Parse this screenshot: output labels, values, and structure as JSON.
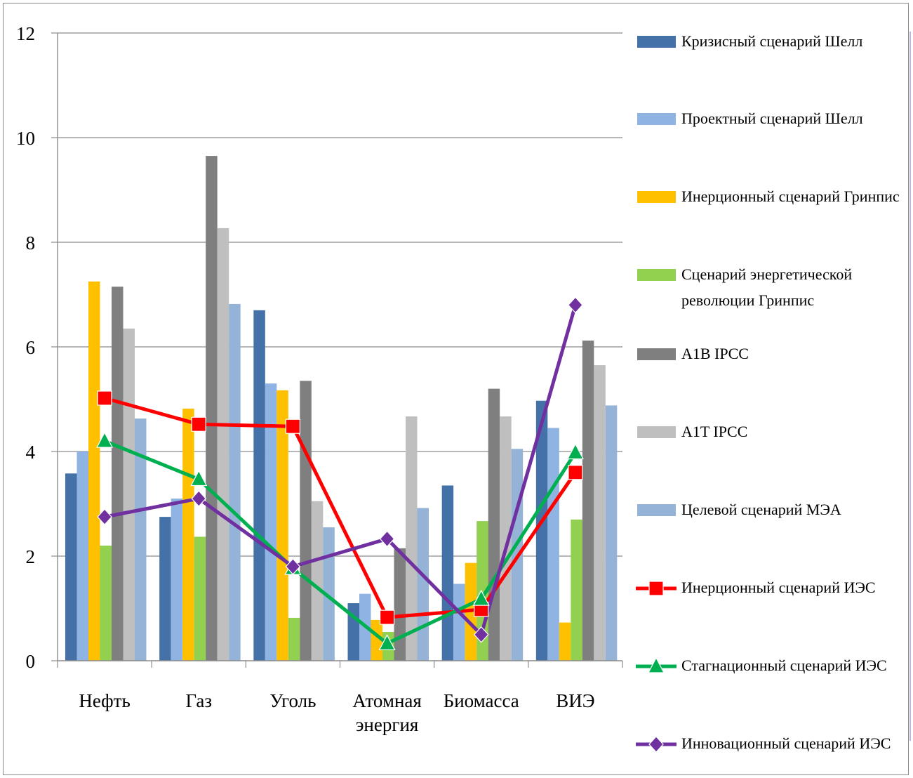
{
  "chart_data": {
    "type": "bar",
    "categories": [
      "Нефть",
      "Газ",
      "Уголь",
      "Атомная энергия",
      "Биомасса",
      "ВИЭ"
    ],
    "category_labels": [
      [
        "Нефть"
      ],
      [
        "Газ"
      ],
      [
        "Уголь"
      ],
      [
        "Атомная",
        "энергия"
      ],
      [
        "Биомасса"
      ],
      [
        "ВИЭ"
      ]
    ],
    "ylim": [
      0,
      12
    ],
    "yticks": [
      "0",
      "2",
      "4",
      "6",
      "8",
      "10",
      "12"
    ],
    "grid": true,
    "legend_position": "right",
    "series": [
      {
        "name": "Кризисный сценарий Шелл",
        "kind": "bar",
        "color": "#4472a8",
        "values": [
          3.58,
          2.75,
          6.7,
          1.1,
          3.35,
          4.97
        ]
      },
      {
        "name": "Проектный сценарий Шелл",
        "kind": "bar",
        "color": "#8fb4e3",
        "values": [
          4.0,
          3.1,
          5.3,
          1.28,
          1.47,
          4.45
        ]
      },
      {
        "name": "Инерционный сценарий Гринпис",
        "kind": "bar",
        "color": "#ffc000",
        "values": [
          7.25,
          4.82,
          5.17,
          0.78,
          1.87,
          0.73
        ]
      },
      {
        "name": "Сценарий энергетической революции Гринпис",
        "kind": "bar",
        "color": "#92d050",
        "values": [
          2.2,
          2.37,
          0.82,
          0.55,
          2.67,
          2.7
        ]
      },
      {
        "name": "A1B  IPCC",
        "kind": "bar",
        "color": "#7f7f7f",
        "values": [
          7.15,
          9.65,
          5.35,
          2.15,
          5.2,
          6.12
        ]
      },
      {
        "name": "A1T  IPCC",
        "kind": "bar",
        "color": "#bfbfbf",
        "values": [
          6.35,
          8.27,
          3.05,
          4.67,
          4.67,
          5.65
        ]
      },
      {
        "name": "Целевой сценарий МЭА",
        "kind": "bar",
        "color": "#95b3d7",
        "values": [
          4.63,
          6.82,
          2.55,
          2.92,
          4.05,
          4.88
        ]
      },
      {
        "name": "Инерционный сценарий ИЭС",
        "kind": "line",
        "marker": "square",
        "color": "#ff0000",
        "values": [
          5.02,
          4.52,
          4.48,
          0.83,
          0.98,
          3.6
        ]
      },
      {
        "name": "Стагнационный сценарий ИЭС",
        "kind": "line",
        "marker": "triangle",
        "color": "#00b050",
        "values": [
          4.2,
          3.47,
          1.77,
          0.33,
          1.18,
          3.98
        ]
      },
      {
        "name": "Инновационный сценарий ИЭС",
        "kind": "line",
        "marker": "diamond",
        "color": "#7030a0",
        "values": [
          2.75,
          3.1,
          1.8,
          2.33,
          0.5,
          6.8
        ]
      }
    ]
  }
}
